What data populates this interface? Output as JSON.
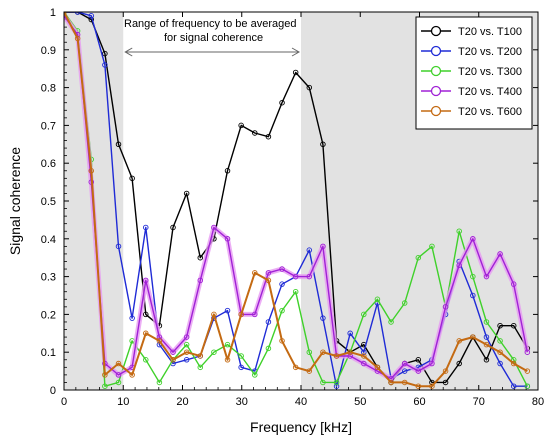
{
  "chart_data": {
    "type": "line",
    "xlabel": "Frequency [kHz]",
    "ylabel": "Signal coherence",
    "xlim": [
      0,
      80
    ],
    "ylim": [
      0,
      1
    ],
    "xticks": [
      "0",
      "10",
      "20",
      "30",
      "40",
      "50",
      "60",
      "70",
      "80"
    ],
    "yticks": [
      "0",
      "0.1",
      "0.2",
      "0.3",
      "0.4",
      "0.5",
      "0.6",
      "0.7",
      "0.8",
      "0.9",
      "1"
    ],
    "annotation": {
      "line1": "Range of frequency to be averaged",
      "line2": "for signal coherence",
      "from": 10,
      "to": 40
    },
    "shaded_ranges": [
      [
        0,
        10
      ],
      [
        40,
        80
      ]
    ],
    "legend_position": "top-right",
    "series": [
      {
        "name": "T20 vs. T100",
        "color": "#000000",
        "x": [
          0,
          2.3,
          4.6,
          6.9,
          9.2,
          11.5,
          13.8,
          16.1,
          18.4,
          20.7,
          23,
          25.3,
          27.6,
          29.9,
          32.2,
          34.5,
          36.8,
          39.1,
          41.4,
          43.7,
          46,
          48.3,
          50.6,
          52.9,
          55.2,
          57.5,
          59.8,
          62.1,
          64.4,
          66.7,
          69,
          71.3,
          73.6,
          75.9,
          78.2
        ],
        "y": [
          1,
          1,
          0.98,
          0.89,
          0.65,
          0.56,
          0.2,
          0.17,
          0.43,
          0.52,
          0.35,
          0.4,
          0.58,
          0.7,
          0.68,
          0.67,
          0.76,
          0.84,
          0.8,
          0.65,
          0.13,
          0.1,
          0.12,
          0.06,
          0.02,
          0.07,
          0.08,
          0.02,
          0.02,
          0.07,
          0.14,
          0.08,
          0.17,
          0.17,
          0.11
        ]
      },
      {
        "name": "T20 vs. T200",
        "color": "#1f2bd6",
        "x": [
          0,
          2.3,
          4.6,
          6.9,
          9.2,
          11.5,
          13.8,
          16.1,
          18.4,
          20.7,
          23,
          25.3,
          27.6,
          29.9,
          32.2,
          34.5,
          36.8,
          39.1,
          41.4,
          43.7,
          46,
          48.3,
          50.6,
          52.9,
          55.2,
          57.5,
          59.8,
          62.1,
          64.4,
          66.7,
          69,
          71.3,
          73.6,
          75.9,
          78.2
        ],
        "y": [
          1,
          1,
          0.99,
          0.86,
          0.38,
          0.19,
          0.43,
          0.12,
          0.07,
          0.08,
          0.09,
          0.19,
          0.21,
          0.06,
          0.05,
          0.18,
          0.28,
          0.3,
          0.37,
          0.19,
          0.01,
          0.15,
          0.1,
          0.23,
          0.03,
          0.05,
          0.06,
          0.08,
          0.2,
          0.34,
          0.25,
          0.14,
          0.07,
          0.01,
          0.01
        ]
      },
      {
        "name": "T20 vs. T300",
        "color": "#3fd12a",
        "x": [
          0,
          2.3,
          4.6,
          6.9,
          9.2,
          11.5,
          13.8,
          16.1,
          18.4,
          20.7,
          23,
          25.3,
          27.6,
          29.9,
          32.2,
          34.5,
          36.8,
          39.1,
          41.4,
          43.7,
          46,
          48.3,
          50.6,
          52.9,
          55.2,
          57.5,
          59.8,
          62.1,
          64.4,
          66.7,
          69,
          71.3,
          73.6,
          75.9,
          78.2
        ],
        "y": [
          1,
          0.95,
          0.61,
          0.01,
          0.02,
          0.13,
          0.08,
          0.02,
          0.08,
          0.12,
          0.06,
          0.1,
          0.12,
          0.09,
          0.04,
          0.11,
          0.21,
          0.26,
          0.1,
          0.02,
          0.02,
          0.1,
          0.2,
          0.24,
          0.18,
          0.23,
          0.35,
          0.38,
          0.22,
          0.42,
          0.3,
          0.18,
          0.13,
          0.08,
          0.01
        ]
      },
      {
        "name": "T20 vs. T400",
        "color": "#a021d6",
        "x": [
          0,
          2.3,
          4.6,
          6.9,
          9.2,
          11.5,
          13.8,
          16.1,
          18.4,
          20.7,
          23,
          25.3,
          27.6,
          29.9,
          32.2,
          34.5,
          36.8,
          39.1,
          41.4,
          43.7,
          46,
          48.3,
          50.6,
          52.9,
          55.2,
          57.5,
          59.8,
          62.1,
          64.4,
          66.7,
          69,
          71.3,
          73.6,
          75.9,
          78.2
        ],
        "y": [
          0.99,
          0.94,
          0.55,
          0.07,
          0.04,
          0.06,
          0.29,
          0.14,
          0.1,
          0.14,
          0.29,
          0.43,
          0.4,
          0.2,
          0.2,
          0.31,
          0.32,
          0.3,
          0.3,
          0.38,
          0.09,
          0.09,
          0.07,
          0.05,
          0.03,
          0.07,
          0.05,
          0.07,
          0.22,
          0.33,
          0.4,
          0.3,
          0.36,
          0.28,
          0.1
        ]
      },
      {
        "name": "T20 vs. T600",
        "color": "#c46a12",
        "x": [
          0,
          2.3,
          4.6,
          6.9,
          9.2,
          11.5,
          13.8,
          16.1,
          18.4,
          20.7,
          23,
          25.3,
          27.6,
          29.9,
          32.2,
          34.5,
          36.8,
          39.1,
          41.4,
          43.7,
          46,
          48.3,
          50.6,
          52.9,
          55.2,
          57.5,
          59.8,
          62.1,
          64.4,
          66.7,
          69,
          71.3,
          73.6,
          75.9,
          78.2
        ],
        "y": [
          1,
          0.93,
          0.58,
          0.04,
          0.07,
          0.04,
          0.15,
          0.13,
          0.08,
          0.1,
          0.09,
          0.2,
          0.08,
          0.2,
          0.31,
          0.29,
          0.13,
          0.06,
          0.05,
          0.1,
          0.09,
          0.1,
          0.09,
          0.06,
          0.02,
          0.02,
          0.01,
          0.01,
          0.05,
          0.13,
          0.14,
          0.12,
          0.1,
          0.07,
          0.05
        ]
      }
    ]
  }
}
